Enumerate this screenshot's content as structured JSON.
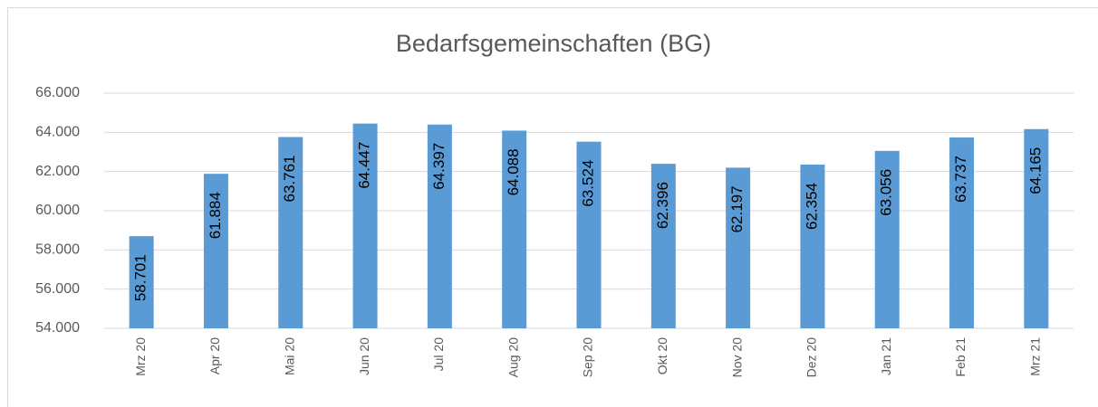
{
  "chart_data": {
    "type": "bar",
    "title": "Bedarfsgemeinschaften (BG)",
    "categories": [
      "Mrz 20",
      "Apr 20",
      "Mai 20",
      "Jun 20",
      "Jul 20",
      "Aug 20",
      "Sep 20",
      "Okt 20",
      "Nov 20",
      "Dez 20",
      "Jan 21",
      "Feb 21",
      "Mrz 21"
    ],
    "values": [
      58701,
      61884,
      63761,
      64447,
      64397,
      64088,
      63524,
      62396,
      62197,
      62354,
      63056,
      63737,
      64165
    ],
    "value_labels": [
      "58.701",
      "61.884",
      "63.761",
      "64.447",
      "64.397",
      "64.088",
      "63.524",
      "62.396",
      "62.197",
      "62.354",
      "63.056",
      "63.737",
      "64.165"
    ],
    "color": "#5b9bd5",
    "ylim": [
      54000,
      66000
    ],
    "yticks": [
      {
        "value": 54000,
        "label": "54.000"
      },
      {
        "value": 56000,
        "label": "56.000"
      },
      {
        "value": 58000,
        "label": "58.000"
      },
      {
        "value": 60000,
        "label": "60.000"
      },
      {
        "value": 62000,
        "label": "62.000"
      },
      {
        "value": 64000,
        "label": "64.000"
      },
      {
        "value": 66000,
        "label": "66.000"
      }
    ],
    "grid": true
  }
}
